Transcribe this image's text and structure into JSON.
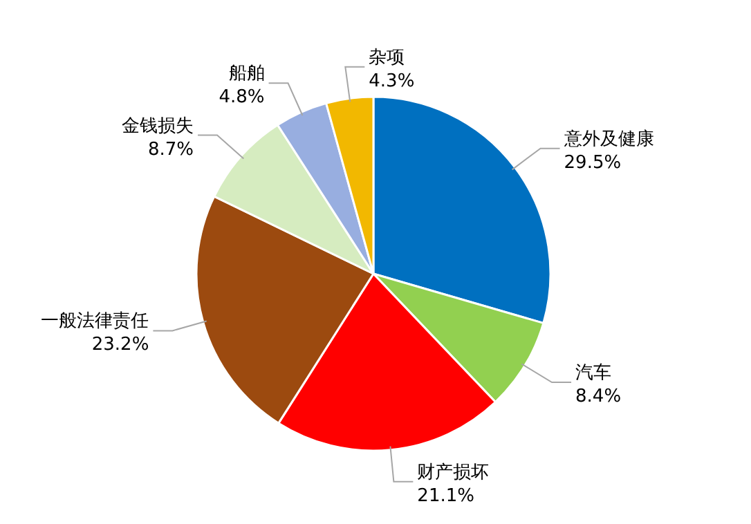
{
  "chart_data": {
    "type": "pie",
    "categories": [
      "意外及健康",
      "汽车",
      "财产损坏",
      "一般法律责任",
      "金钱损失",
      "船舶",
      "杂项"
    ],
    "values": [
      29.5,
      8.4,
      21.1,
      23.2,
      8.7,
      4.8,
      4.3
    ],
    "value_labels": [
      "29.5%",
      "8.4%",
      "21.1%",
      "23.2%",
      "8.7%",
      "4.8%",
      "4.3%"
    ],
    "colors": [
      "#0070c0",
      "#92d050",
      "#ff0000",
      "#9c4a0f",
      "#d6ecc0",
      "#98aee0",
      "#f2b800"
    ]
  }
}
